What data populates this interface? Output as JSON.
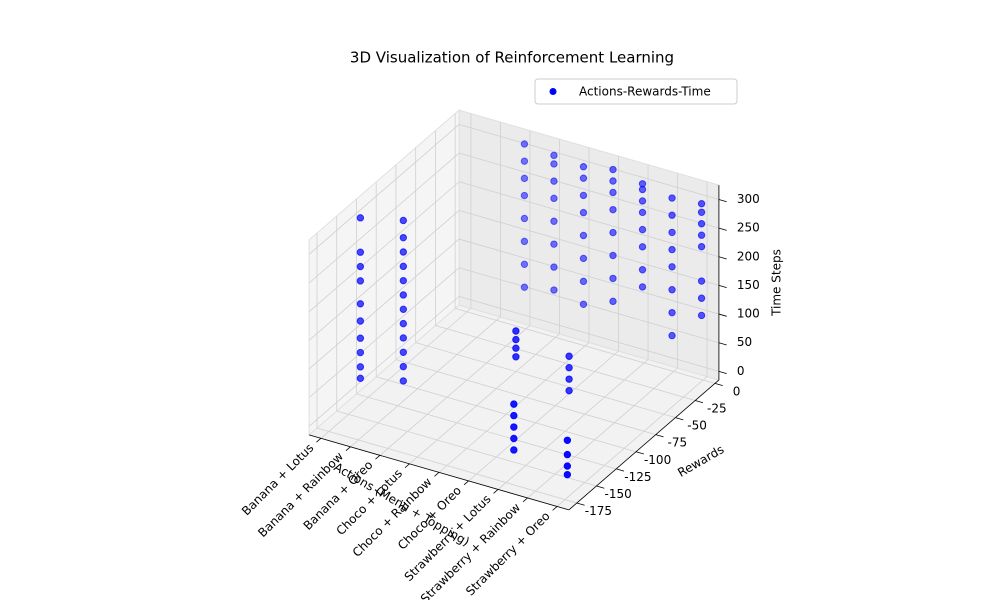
{
  "chart_data": {
    "type": "scatter3d",
    "title": "3D Visualization of Reinforcement Learning",
    "xlabel": "Actions (Menu + Topping)",
    "ylabel": "Rewards",
    "zlabel": "Time Steps",
    "xlim": [
      -0.4,
      8.4
    ],
    "ylim": [
      -185,
      5
    ],
    "zlim": [
      -15,
      325
    ],
    "xticks": [
      {
        "value": 0,
        "label": "Banana + Lotus"
      },
      {
        "value": 1,
        "label": "Banana + Rainbow"
      },
      {
        "value": 2,
        "label": "Banana + Oreo"
      },
      {
        "value": 3,
        "label": "Choco + Lotus"
      },
      {
        "value": 4,
        "label": "Choco + Rainbow"
      },
      {
        "value": 5,
        "label": "Choco + Oreo"
      },
      {
        "value": 6,
        "label": "Strawberry + Lotus"
      },
      {
        "value": 7,
        "label": "Strawberry + Rainbow"
      },
      {
        "value": 8,
        "label": "Strawberry + Oreo"
      }
    ],
    "yticks": [
      0,
      -25,
      -50,
      -75,
      -100,
      -125,
      -150,
      -175
    ],
    "zticks": [
      0,
      50,
      100,
      150,
      200,
      250,
      300
    ],
    "grid": true,
    "legend": "upper right",
    "series": [
      {
        "name": "Actions-Rewards-Time",
        "color": "#0000ff",
        "x": [
          0,
          0,
          0,
          0,
          0,
          0,
          0,
          0,
          0,
          0,
          1,
          1,
          1,
          1,
          1,
          1,
          1,
          1,
          1,
          1,
          1,
          1,
          2,
          2,
          2,
          2,
          2,
          2,
          2,
          2,
          3,
          3,
          3,
          3,
          3,
          3,
          3,
          3,
          4,
          4,
          4,
          4,
          4,
          4,
          4,
          4,
          5,
          5,
          5,
          5,
          5,
          5,
          5,
          5,
          6,
          6,
          6,
          6,
          6,
          6,
          6,
          6,
          7,
          7,
          7,
          7,
          7,
          7,
          7,
          7,
          8,
          8,
          8,
          8,
          8,
          8,
          8,
          8,
          5,
          5,
          5,
          5,
          6,
          6,
          6,
          6,
          6,
          6,
          6,
          6,
          6,
          8,
          8,
          8,
          8
        ],
        "y": [
          -135,
          -135,
          -135,
          -135,
          -135,
          -135,
          -135,
          -135,
          -135,
          -135,
          -118,
          -118,
          -118,
          -118,
          -118,
          -118,
          -118,
          -118,
          -118,
          -118,
          -118,
          -118,
          -2,
          -2,
          -2,
          -2,
          -2,
          -2,
          -2,
          -2,
          -2,
          -2,
          -2,
          -2,
          -2,
          -2,
          -2,
          -2,
          -2,
          -2,
          -2,
          -2,
          -2,
          -2,
          -2,
          -2,
          -2,
          -2,
          -2,
          -2,
          -2,
          -2,
          -2,
          -2,
          -2,
          -2,
          -2,
          -2,
          -2,
          -2,
          -2,
          -2,
          -2,
          -2,
          -2,
          -2,
          -2,
          -2,
          -2,
          -2,
          -2,
          -2,
          -2,
          -2,
          -2,
          -2,
          -2,
          -2,
          -125,
          -125,
          -125,
          -125,
          -95,
          -95,
          -95,
          -95,
          -165,
          -165,
          -165,
          -165,
          -165,
          -172,
          -172,
          -172,
          -172
        ],
        "z": [
          30,
          50,
          75,
          100,
          130,
          160,
          200,
          225,
          250,
          310,
          20,
          45,
          70,
          95,
          120,
          145,
          170,
          195,
          220,
          245,
          270,
          300,
          60,
          100,
          140,
          180,
          220,
          250,
          280,
          310,
          70,
          110,
          150,
          190,
          230,
          260,
          290,
          305,
          60,
          100,
          140,
          180,
          220,
          250,
          280,
          300,
          80,
          120,
          160,
          200,
          240,
          270,
          290,
          310,
          120,
          150,
          190,
          220,
          250,
          270,
          290,
          300,
          50,
          90,
          130,
          170,
          200,
          230,
          260,
          290,
          100,
          130,
          160,
          220,
          240,
          260,
          280,
          295,
          130,
          145,
          160,
          175,
          50,
          70,
          90,
          110,
          30,
          50,
          70,
          90,
          110,
          25,
          40,
          60,
          85
        ]
      }
    ]
  }
}
